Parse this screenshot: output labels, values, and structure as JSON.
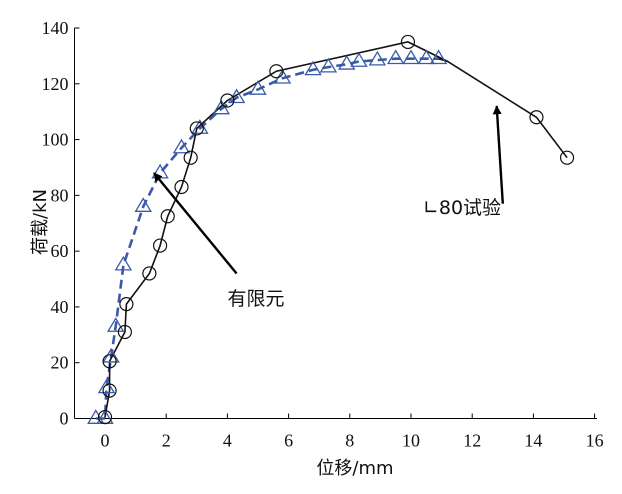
{
  "chart_data": {
    "type": "line",
    "xlabel": "位移/mm",
    "ylabel": "荷载/kN",
    "xlim": [
      -1,
      16
    ],
    "ylim": [
      0,
      140
    ],
    "xticks": [
      0,
      2,
      4,
      6,
      8,
      10,
      12,
      14,
      16
    ],
    "yticks": [
      0,
      20,
      40,
      60,
      80,
      100,
      120,
      140
    ],
    "grid": false,
    "legend": "none",
    "series": [
      {
        "name": "∟80试验",
        "color": "#111111",
        "marker": "circle-open",
        "line": "solid",
        "points": [
          [
            0.0,
            0.5
          ],
          [
            0.15,
            10
          ],
          [
            0.15,
            20.5
          ],
          [
            0.65,
            31
          ],
          [
            0.7,
            41
          ],
          [
            1.45,
            52
          ],
          [
            1.8,
            62
          ],
          [
            2.05,
            72.5
          ],
          [
            2.5,
            83
          ],
          [
            2.8,
            93.5
          ],
          [
            3.0,
            104
          ],
          [
            4.0,
            114
          ],
          [
            5.6,
            124.5
          ],
          [
            9.9,
            135
          ],
          [
            14.1,
            108
          ],
          [
            15.1,
            93.5
          ]
        ]
      },
      {
        "name": "有限元",
        "color": "#3a5aa8",
        "marker": "triangle-open",
        "line": "dashed",
        "points": [
          [
            -0.3,
            0
          ],
          [
            0.0,
            0
          ],
          [
            0.05,
            11
          ],
          [
            0.2,
            22
          ],
          [
            0.35,
            33
          ],
          [
            0.6,
            55
          ],
          [
            1.25,
            76
          ],
          [
            1.8,
            88
          ],
          [
            2.5,
            97
          ],
          [
            3.1,
            104
          ],
          [
            3.8,
            111
          ],
          [
            4.3,
            115
          ],
          [
            5.0,
            118
          ],
          [
            5.8,
            122
          ],
          [
            6.8,
            125
          ],
          [
            7.3,
            126
          ],
          [
            7.9,
            127
          ],
          [
            8.3,
            128
          ],
          [
            8.9,
            128.5
          ],
          [
            9.5,
            129
          ],
          [
            10.0,
            129
          ],
          [
            10.5,
            129
          ],
          [
            10.9,
            129
          ]
        ]
      }
    ],
    "test_curve_tail": [
      [
        9.9,
        135
      ],
      [
        11.2,
        128
      ],
      [
        14.1,
        108
      ],
      [
        15.1,
        93.5
      ]
    ],
    "annotations": [
      {
        "text": "∟80试验",
        "arrow_from": [
          13.0,
          77.0
        ],
        "arrow_to": [
          12.8,
          112.0
        ]
      },
      {
        "text": "有限元",
        "arrow_from": [
          4.3,
          52.0
        ],
        "arrow_to": [
          1.6,
          88.0
        ]
      }
    ]
  }
}
